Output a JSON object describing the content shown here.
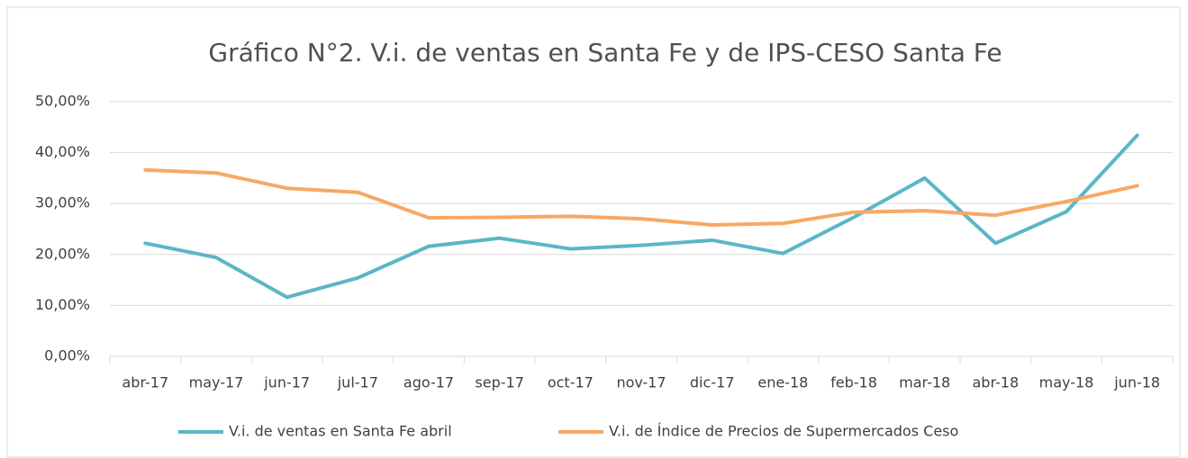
{
  "chart_data": {
    "type": "line",
    "title": "Gráfico N°2. V.i. de ventas en Santa Fe y de IPS-CESO Santa Fe",
    "categories": [
      "abr-17",
      "may-17",
      "jun-17",
      "jul-17",
      "ago-17",
      "sep-17",
      "oct-17",
      "nov-17",
      "dic-17",
      "ene-18",
      "feb-18",
      "mar-18",
      "abr-18",
      "may-18",
      "jun-18"
    ],
    "series": [
      {
        "name": "V.i. de ventas en Santa Fe abril",
        "color": "#5ab6c8",
        "values": [
          22.2,
          19.4,
          11.6,
          15.4,
          21.6,
          23.2,
          21.1,
          21.8,
          22.8,
          20.2,
          27.3,
          35.0,
          22.2,
          28.4,
          43.4
        ]
      },
      {
        "name": "V.i. de Índice de Precios de Supermercados Ceso",
        "color": "#f7a864",
        "values": [
          36.6,
          36.0,
          33.0,
          32.2,
          27.2,
          27.3,
          27.5,
          27.0,
          25.8,
          26.1,
          28.3,
          28.6,
          27.7,
          30.4,
          33.5
        ]
      }
    ],
    "ylim": [
      0,
      50
    ],
    "yticks": [
      {
        "value": 0,
        "label": "0,00%"
      },
      {
        "value": 10,
        "label": "10,00%"
      },
      {
        "value": 20,
        "label": "20,00%"
      },
      {
        "value": 30,
        "label": "30,00%"
      },
      {
        "value": 40,
        "label": "40,00%"
      },
      {
        "value": 50,
        "label": "50,00%"
      }
    ],
    "grid": true,
    "legend": "bottom"
  }
}
